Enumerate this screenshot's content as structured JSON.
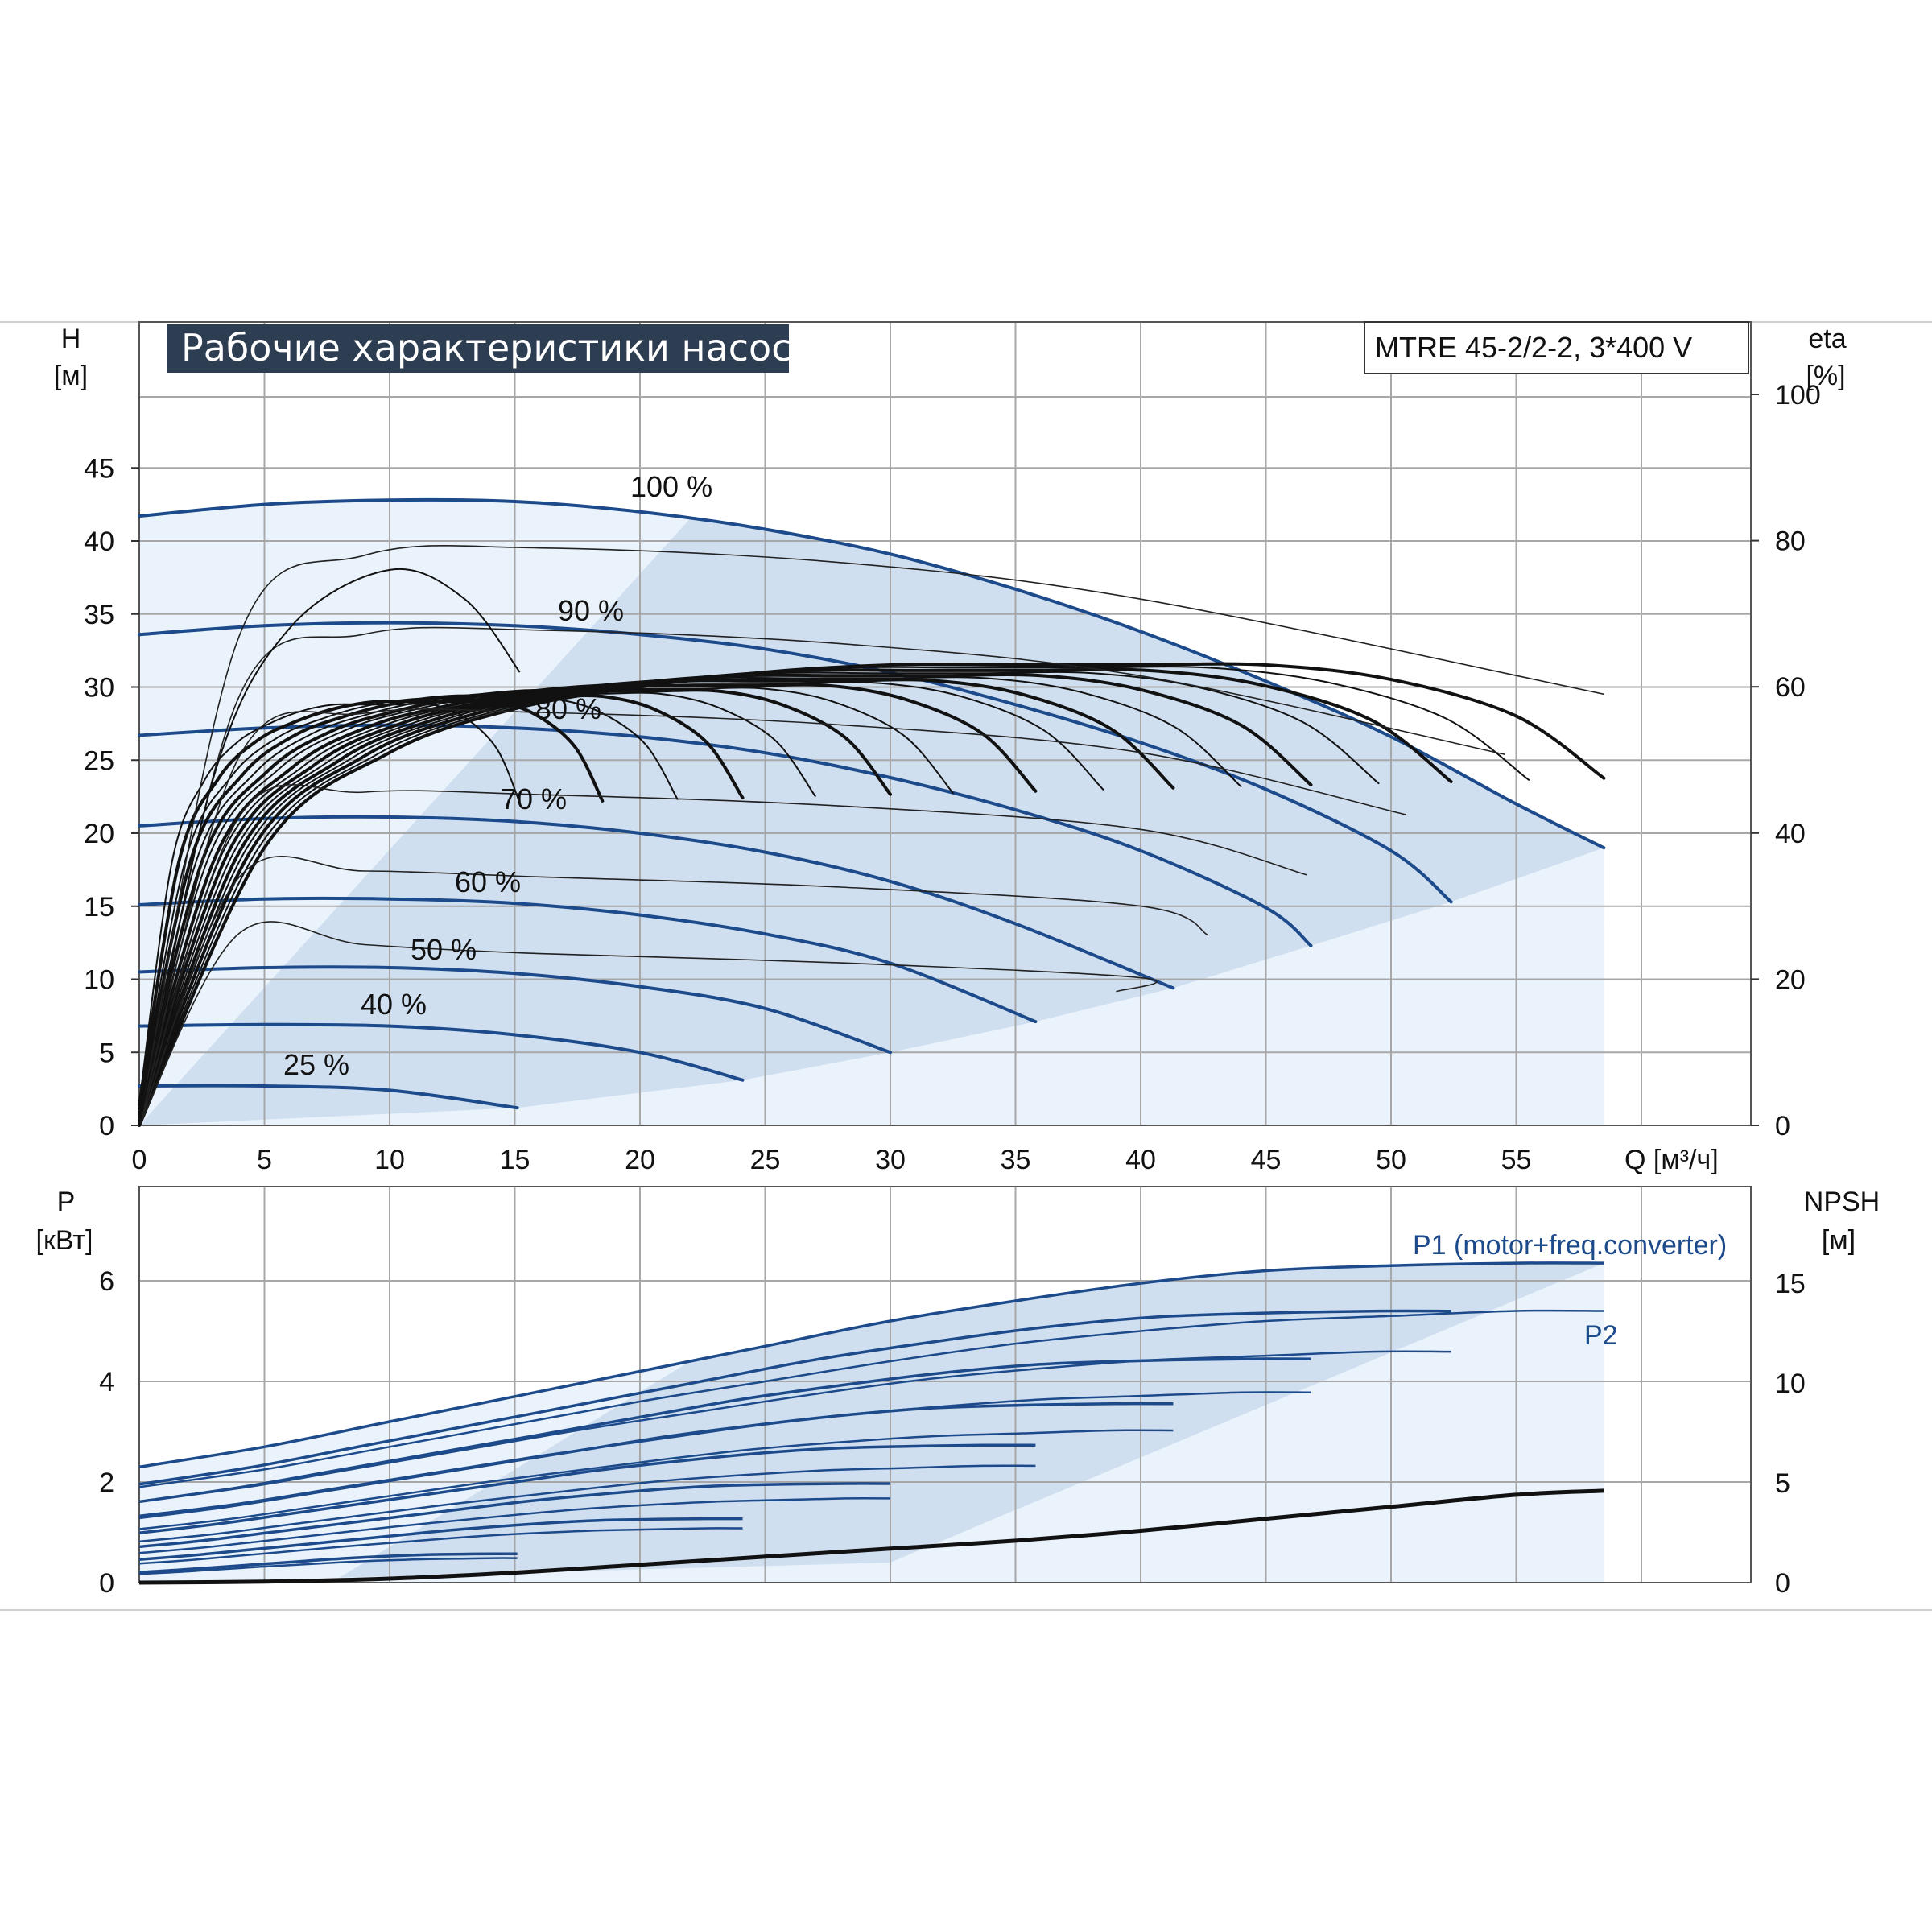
{
  "title": "Рабочие характеристики насоса",
  "model": "MTRE 45-2/2-2, 3*400 V",
  "top_axis_labels": {
    "h_symbol": "H",
    "h_unit": "[м]",
    "eta_symbol": "eta",
    "eta_unit": "[%]"
  },
  "bottom_axis_labels": {
    "p_symbol": "P",
    "p_unit": "[кВт]",
    "npsh_symbol": "NPSH",
    "npsh_unit": "[м]"
  },
  "x_axis_label": "Q [м³/ч]",
  "x_ticks": [
    "0",
    "5",
    "10",
    "15",
    "20",
    "25",
    "30",
    "35",
    "40",
    "45",
    "50",
    "55"
  ],
  "h_ticks": [
    "0",
    "5",
    "10",
    "15",
    "20",
    "25",
    "30",
    "35",
    "40",
    "45"
  ],
  "eta_ticks": [
    "0",
    "20",
    "40",
    "60",
    "80",
    "100"
  ],
  "p_ticks": [
    "0",
    "2",
    "4",
    "6"
  ],
  "npsh_ticks": [
    "0",
    "5",
    "10",
    "15"
  ],
  "curve_labels": [
    "100 %",
    "90 %",
    "80 %",
    "70 %",
    "60 %",
    "50 %",
    "40 %",
    "25 %"
  ],
  "power_labels": {
    "p1": "P1 (motor+freq.converter)",
    "p2": "P2"
  },
  "colors": {
    "curve_blue": "#1c4a8a",
    "band_fill": "#cfdff0",
    "band_fill_light": "#eaf3fb",
    "title_bg": "#2d3e52",
    "grid": "#a7a7a7"
  },
  "chart_data": [
    {
      "type": "line",
      "title": "Рабочие характеристики насоса",
      "xlabel": "Q [м³/ч]",
      "ylabel": "H [м]",
      "y2label": "eta [%]",
      "xlim": [
        0,
        64
      ],
      "ylim": [
        0,
        50
      ],
      "y2lim": [
        0,
        100
      ],
      "grid": true,
      "series": [
        {
          "name": "100 %",
          "x": [
            0,
            5,
            10,
            15,
            20,
            25,
            30,
            35,
            40,
            45,
            50,
            55,
            58.5
          ],
          "y": [
            41.7,
            42.5,
            42.8,
            42.7,
            42.0,
            40.8,
            39.1,
            36.7,
            33.8,
            30.4,
            26.6,
            22.0,
            19.0
          ]
        },
        {
          "name": "90 %",
          "x": [
            0,
            5,
            10,
            15,
            20,
            25,
            30,
            35,
            40,
            45,
            50,
            52.4
          ],
          "y": [
            33.6,
            34.2,
            34.4,
            34.2,
            33.6,
            32.6,
            31.0,
            28.8,
            26.2,
            23.0,
            18.8,
            15.3
          ]
        },
        {
          "name": "80 %",
          "x": [
            0,
            5,
            10,
            15,
            20,
            25,
            30,
            35,
            40,
            45,
            46.8
          ],
          "y": [
            26.7,
            27.2,
            27.4,
            27.2,
            26.6,
            25.5,
            23.8,
            21.6,
            18.8,
            14.9,
            12.3
          ]
        },
        {
          "name": "70 %",
          "x": [
            0,
            5,
            10,
            15,
            20,
            25,
            30,
            35,
            41.3
          ],
          "y": [
            20.5,
            21.0,
            21.1,
            20.8,
            20.0,
            18.7,
            16.7,
            13.8,
            9.4
          ]
        },
        {
          "name": "60 %",
          "x": [
            0,
            5,
            10,
            15,
            20,
            25,
            30,
            35.8
          ],
          "y": [
            15.1,
            15.5,
            15.5,
            15.2,
            14.4,
            13.1,
            11.1,
            7.1
          ]
        },
        {
          "name": "50 %",
          "x": [
            0,
            5,
            10,
            15,
            20,
            25,
            30
          ],
          "y": [
            10.5,
            10.8,
            10.8,
            10.4,
            9.5,
            8.0,
            5.0
          ]
        },
        {
          "name": "40 %",
          "x": [
            0,
            5,
            10,
            15,
            20,
            24.1
          ],
          "y": [
            6.8,
            6.9,
            6.8,
            6.2,
            5.0,
            3.1
          ]
        },
        {
          "name": "25 %",
          "x": [
            0,
            5,
            10,
            15.1
          ],
          "y": [
            2.7,
            2.7,
            2.4,
            1.2
          ]
        },
        {
          "name": "eta 100 %",
          "axis": "y2",
          "x": [
            0,
            5,
            10,
            15,
            20,
            25,
            30,
            35,
            40,
            45,
            50,
            55,
            58.5
          ],
          "y": [
            0,
            38,
            51,
            57,
            60,
            62,
            63,
            63,
            63,
            63,
            61,
            56,
            47.5
          ]
        },
        {
          "name": "eta 30 %",
          "axis": "y2",
          "x": [
            0,
            3,
            6,
            8.5,
            10,
            11.5,
            15.2
          ],
          "y": [
            0,
            28,
            45,
            51,
            50,
            45,
            30
          ]
        }
      ],
      "annotations": [
        "100 %",
        "90 %",
        "80 %",
        "70 %",
        "60 %",
        "50 %",
        "40 %",
        "25 %",
        "MTRE 45-2/2-2, 3*400 V"
      ]
    },
    {
      "type": "line",
      "xlabel": "Q [м³/ч]",
      "ylabel": "P [кВт]",
      "y2label": "NPSH [м]",
      "xlim": [
        0,
        64
      ],
      "ylim": [
        0,
        8
      ],
      "y2lim": [
        0,
        20
      ],
      "grid": true,
      "series": [
        {
          "name": "P1 (motor+freq.converter)",
          "x": [
            0,
            5,
            10,
            15,
            20,
            25,
            30,
            35,
            40,
            45,
            50,
            55,
            58.5
          ],
          "y": [
            2.3,
            2.7,
            3.2,
            3.7,
            4.2,
            4.7,
            5.2,
            5.6,
            5.95,
            6.2,
            6.3,
            6.35,
            6.35
          ]
        },
        {
          "name": "P2",
          "x": [
            0,
            5,
            10,
            15,
            20,
            25,
            30,
            35,
            40,
            45,
            50,
            55,
            58.5
          ],
          "y": [
            1.9,
            2.25,
            2.7,
            3.15,
            3.6,
            4.0,
            4.4,
            4.75,
            5.0,
            5.2,
            5.3,
            5.4,
            5.4
          ]
        },
        {
          "name": "NPSH",
          "axis": "y2",
          "x": [
            0,
            5,
            10,
            15,
            20,
            25,
            30,
            35,
            40,
            45,
            50,
            55,
            58.5
          ],
          "y": [
            0,
            0.05,
            0.2,
            0.5,
            0.9,
            1.3,
            1.7,
            2.1,
            2.6,
            3.2,
            3.8,
            4.4,
            4.6
          ]
        }
      ]
    }
  ]
}
